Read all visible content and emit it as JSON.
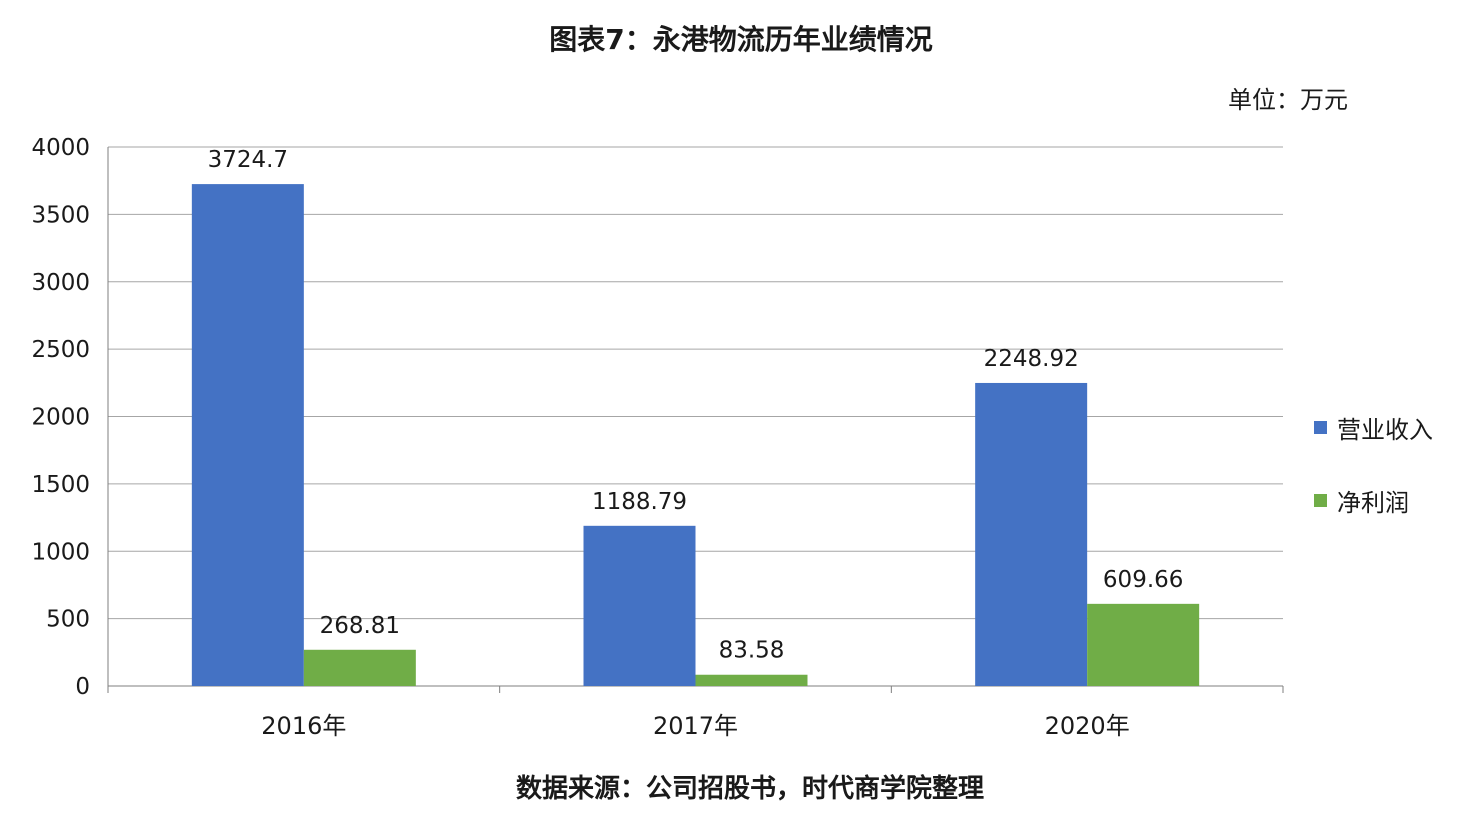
{
  "title": "图表7：永港物流历年业绩情况",
  "unit": "单位：万元",
  "source": "数据来源：公司招股书，时代商学院整理",
  "chart_data": {
    "type": "bar",
    "categories": [
      "2016年",
      "2017年",
      "2020年"
    ],
    "series": [
      {
        "name": "营业收入",
        "values": [
          3724.7,
          1188.79,
          2248.92
        ],
        "labels": [
          "3724.7",
          "1188.79",
          "2248.92"
        ],
        "color": "#4472C4"
      },
      {
        "name": "净利润",
        "values": [
          268.81,
          83.58,
          609.66
        ],
        "labels": [
          "268.81",
          "83.58",
          "609.66"
        ],
        "color": "#70AD47"
      }
    ],
    "ylim": [
      0,
      4000
    ],
    "yticks": [
      "0",
      "500",
      "1000",
      "1500",
      "2000",
      "2500",
      "3000",
      "3500",
      "4000"
    ],
    "grid": true,
    "legend_position": "right"
  }
}
